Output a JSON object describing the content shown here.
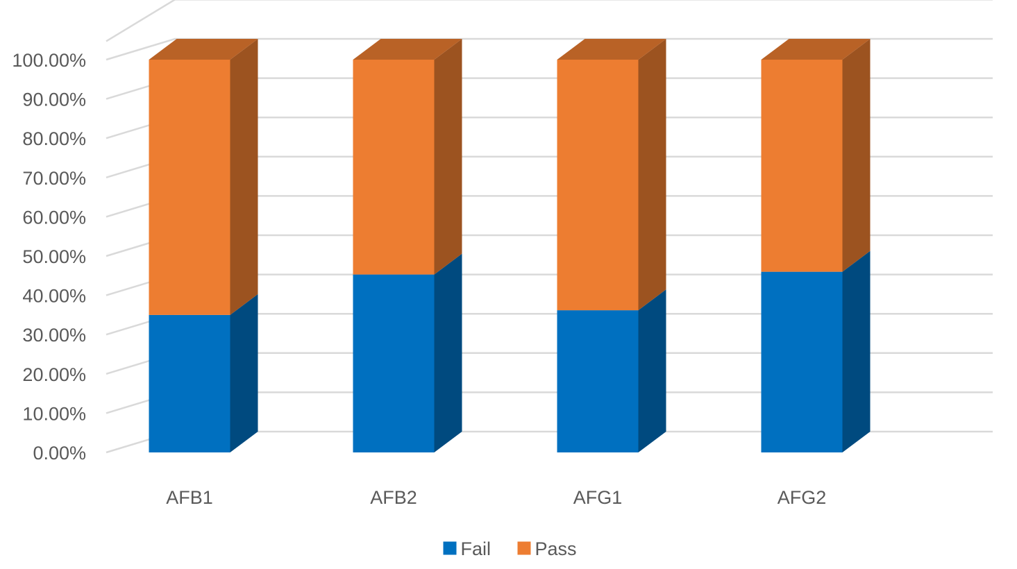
{
  "chart_data": {
    "type": "bar",
    "subtype": "stacked-100-3d",
    "title": "",
    "xlabel": "",
    "ylabel": "",
    "categories": [
      "AFB1",
      "AFB2",
      "AFG1",
      "AFG2"
    ],
    "series": [
      {
        "name": "Fail",
        "color": "#0070C0",
        "values": [
          35.0,
          45.3,
          36.2,
          46.0
        ]
      },
      {
        "name": "Pass",
        "color": "#ED7D31",
        "values": [
          65.0,
          54.7,
          63.8,
          54.0
        ]
      }
    ],
    "ylim": [
      0,
      100
    ],
    "yticks": [
      0,
      10,
      20,
      30,
      40,
      50,
      60,
      70,
      80,
      90,
      100
    ],
    "ytick_labels": [
      "0.00%",
      "10.00%",
      "20.00%",
      "30.00%",
      "40.00%",
      "50.00%",
      "60.00%",
      "70.00%",
      "80.00%",
      "90.00%",
      "100.00%"
    ],
    "grid": true,
    "legend": "bottom-center"
  }
}
